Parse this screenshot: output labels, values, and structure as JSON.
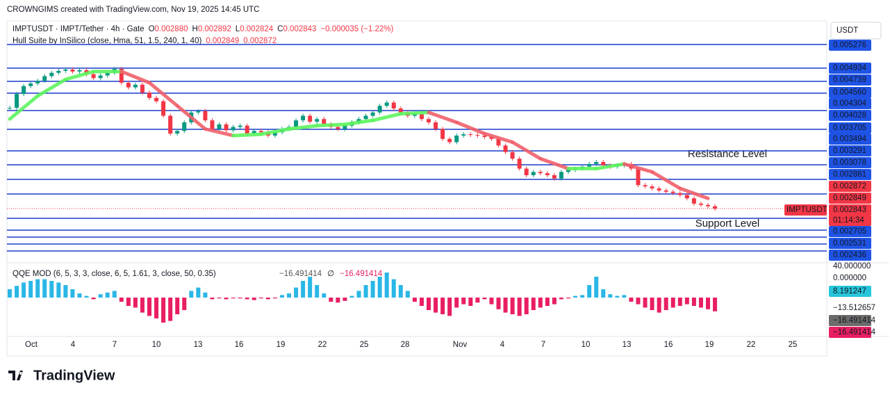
{
  "header": {
    "credit": "CROWNGIMS created with TradingView.com, Nov 19, 2025 14:45 UTC",
    "symbol": "IMPTUSDT · IMPT/Tether · 4h · Gate",
    "o_label": "O",
    "o": "0.002880",
    "h_label": "H",
    "h": "0.002892",
    "l_label": "L",
    "l": "0.002824",
    "c_label": "C",
    "c": "0.002843",
    "change": "−0.000035 (−1.22%)",
    "hull_legend": "Hull Suite by InSilico (close, Hma, 51, 1.5, 240, 1, 40)",
    "hull_v1": "0.002849",
    "hull_v2": "0.002872",
    "qqe_legend": "QQE MOD (6, 5, 3, 3, close, 6, 5, 1.61, 3, close, 50, 0.35)",
    "qqe_v1": "−16.491414",
    "qqe_sep": "∅",
    "qqe_v2": "−16.491414",
    "currency": "USDT",
    "brand": "TradingView"
  },
  "annotations": {
    "resistance": "Resistance Level",
    "support": "Support Level"
  },
  "price_labels": [
    "0.005276",
    "0.004934",
    "0.004739",
    "0.004560",
    "0.004304",
    "0.004028",
    "0.003705",
    "0.003494",
    "0.003291",
    "0.003078",
    "0.002881",
    "0.002872",
    "0.002849",
    "0.002843",
    "01:14:34",
    "0.002705",
    "0.002531",
    "0.002436"
  ],
  "current_symbol": "IMPTUSDT",
  "qqe_labels": [
    "40.000000",
    "0.000000",
    "8.191247",
    "−13.512657",
    "−16.491414",
    "−16.491414"
  ],
  "x_labels": [
    "Oct",
    "4",
    "7",
    "10",
    "13",
    "16",
    "19",
    "22",
    "25",
    "28",
    "Nov",
    "4",
    "7",
    "10",
    "13",
    "16",
    "19",
    "22",
    "25"
  ],
  "chart_data": {
    "type": "candlestick",
    "ylim": [
      0.00215,
      0.00535
    ],
    "up_color": "#089981",
    "down_color": "#f23645",
    "closes": [
      0.00437,
      0.00458,
      0.0047,
      0.00474,
      0.00478,
      0.00485,
      0.0049,
      0.00493,
      0.00495,
      0.00492,
      0.00494,
      0.00488,
      0.00482,
      0.00486,
      0.0049,
      0.00496,
      0.00475,
      0.00468,
      0.00472,
      0.0046,
      0.00452,
      0.00447,
      0.00425,
      0.00398,
      0.00402,
      0.00415,
      0.0043,
      0.00432,
      0.00418,
      0.00405,
      0.00412,
      0.00403,
      0.00408,
      0.0041,
      0.00398,
      0.00402,
      0.004,
      0.00395,
      0.004,
      0.00405,
      0.00408,
      0.00418,
      0.00425,
      0.00416,
      0.0042,
      0.00412,
      0.00408,
      0.00405,
      0.0041,
      0.00415,
      0.0042,
      0.00425,
      0.0043,
      0.0044,
      0.00445,
      0.00436,
      0.0043,
      0.00425,
      0.00428,
      0.0042,
      0.00415,
      0.00405,
      0.0039,
      0.00385,
      0.00395,
      0.00397,
      0.00396,
      0.00395,
      0.00393,
      0.0039,
      0.0038,
      0.0037,
      0.0036,
      0.00345,
      0.00335,
      0.0034,
      0.00338,
      0.00335,
      0.0033,
      0.0034,
      0.00343,
      0.00345,
      0.00348,
      0.00352,
      0.00355,
      0.0035,
      0.00348,
      0.0035,
      0.00352,
      0.00345,
      0.0032,
      0.00318,
      0.00315,
      0.00312,
      0.0031,
      0.00308,
      0.00305,
      0.003,
      0.00292,
      0.0029,
      0.00288,
      0.002843
    ],
    "hull": {
      "rising_color": "#5ef55e",
      "falling_color": "#f0606b",
      "values": [
        0.0042,
        0.00455,
        0.0048,
        0.00492,
        0.00492,
        0.00475,
        0.0044,
        0.00405,
        0.00395,
        0.00397,
        0.00405,
        0.0041,
        0.00412,
        0.00418,
        0.00428,
        0.0043,
        0.00415,
        0.00398,
        0.00385,
        0.0036,
        0.00345,
        0.00345,
        0.00352,
        0.0034,
        0.00315,
        0.003
      ]
    },
    "qqe": {
      "ylim": [
        -35,
        40
      ],
      "up_color": "#2ab7e6",
      "down_color": "#e91e63",
      "values": [
        10,
        14,
        18,
        20,
        22,
        22,
        20,
        18,
        15,
        10,
        5,
        2,
        -2,
        4,
        6,
        8,
        -5,
        -10,
        -12,
        -18,
        -22,
        -25,
        -30,
        -28,
        -20,
        -15,
        8,
        12,
        6,
        -2,
        -1,
        -2,
        -1,
        -1,
        -2,
        -3,
        -1,
        -2,
        -1,
        3,
        5,
        12,
        20,
        25,
        15,
        5,
        -5,
        -6,
        -4,
        2,
        8,
        15,
        20,
        25,
        30,
        22,
        15,
        8,
        -5,
        -10,
        -15,
        -18,
        -20,
        -22,
        -12,
        -8,
        -10,
        -6,
        -2,
        -8,
        -14,
        -18,
        -20,
        -22,
        -20,
        -15,
        -12,
        -10,
        -8,
        -2,
        -1,
        2,
        3,
        15,
        25,
        10,
        4,
        2,
        3,
        -5,
        -8,
        -12,
        -15,
        -18,
        -15,
        -12,
        -10,
        -8,
        -10,
        -12,
        -14,
        -16.491414
      ]
    }
  }
}
